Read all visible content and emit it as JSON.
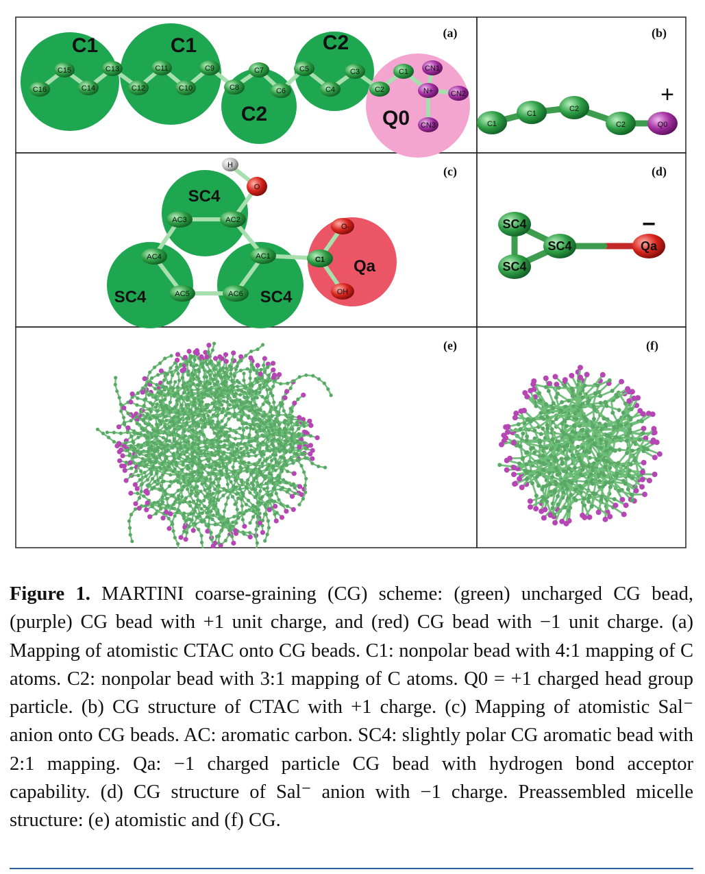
{
  "figure": {
    "panels": {
      "a": {
        "letter": "(a)",
        "bead_labels": [
          "C1",
          "C1",
          "C2",
          "C2",
          "Q0"
        ],
        "atoms": [
          "C16",
          "C15",
          "C14",
          "C13",
          "C12",
          "C11",
          "C10",
          "C9",
          "C8",
          "C7",
          "C6",
          "C5",
          "C4",
          "C3",
          "C2",
          "C1",
          "N+",
          "CN1",
          "CN2",
          "CN3"
        ]
      },
      "b": {
        "letter": "(b)",
        "beads": [
          "C1",
          "C1",
          "C2",
          "C2",
          "Q0"
        ],
        "charge": "+"
      },
      "c": {
        "letter": "(c)",
        "bead_labels": [
          "SC4",
          "SC4",
          "SC4",
          "Qa"
        ],
        "atoms": [
          "H",
          "O",
          "AC3",
          "AC2",
          "AC4",
          "AC1",
          "AC5",
          "AC6",
          "C1",
          "O-",
          "OH"
        ]
      },
      "d": {
        "letter": "(d)",
        "beads": [
          "SC4",
          "SC4",
          "SC4",
          "Qa"
        ],
        "charge": "−"
      },
      "e": {
        "letter": "(e)"
      },
      "f": {
        "letter": "(f)"
      }
    },
    "colors": {
      "uncharged": "#1fa651",
      "positive": "#a0349f",
      "negative": "#d62c2c",
      "q0_region": "#f3a5cf",
      "qa_region": "#ec5566",
      "bond": "#6fbf7a"
    }
  },
  "caption": {
    "label": "Figure 1.",
    "text": "MARTINI coarse-graining (CG) scheme: (green) uncharged CG bead, (purple) CG bead with +1 unit charge, and (red) CG bead with −1 unit charge. (a) Mapping of atomistic CTAC onto CG beads. C1: nonpolar bead with 4:1 mapping of C atoms. C2: nonpolar bead with 3:1 mapping of C atoms. Q0 = +1 charged head group particle. (b) CG structure of CTAC with +1 charge. (c) Mapping of atomistic Sal⁻ anion onto CG beads. AC: aromatic carbon. SC4: slightly polar CG aromatic bead with 2:1 mapping. Qa: −1 charged particle CG bead with hydrogen bond acceptor capability. (d) CG structure of Sal⁻ anion with −1 charge. Preassembled micelle structure: (e) atomistic and (f) CG."
  }
}
